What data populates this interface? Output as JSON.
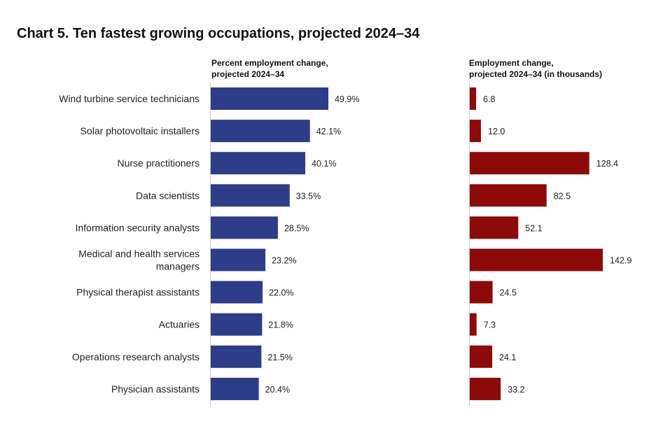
{
  "chart_data": [
    {
      "type": "bar",
      "orientation": "horizontal",
      "title": "Chart 5. Ten fastest growing occupations, projected 2024–34",
      "header": [
        "Percent employment change,",
        "projected 2024–34"
      ],
      "categories": [
        "Wind turbine service technicians",
        "Solar photovoltaic installers",
        "Nurse practitioners",
        "Data scientists",
        "Information security analysts",
        "Medical and health services\nmanagers",
        "Physical therapist assistants",
        "Actuaries",
        "Operations research analysts",
        "Physician assistants"
      ],
      "values": [
        49.9,
        42.1,
        40.1,
        33.5,
        28.5,
        23.2,
        22.0,
        21.8,
        21.5,
        20.4
      ],
      "data_labels": [
        "49.9%",
        "42.1%",
        "40.1%",
        "33.5%",
        "28.5%",
        "23.2%",
        "22.0%",
        "21.8%",
        "21.5%",
        "20.4%"
      ],
      "color": "#2E3D87",
      "xlim": [
        0,
        50
      ],
      "grid": false
    },
    {
      "type": "bar",
      "orientation": "horizontal",
      "header": [
        "Employment change,",
        "projected 2024–34 (in thousands)"
      ],
      "values": [
        6.8,
        12.0,
        128.4,
        82.5,
        52.1,
        142.9,
        24.5,
        7.3,
        24.1,
        33.2
      ],
      "data_labels": [
        "6.8",
        "12.0",
        "128.4",
        "82.5",
        "52.1",
        "142.9",
        "24.5",
        "7.3",
        "24.1",
        "33.2"
      ],
      "color": "#8C0A0A",
      "xlim": [
        0,
        143
      ],
      "grid": false
    }
  ]
}
